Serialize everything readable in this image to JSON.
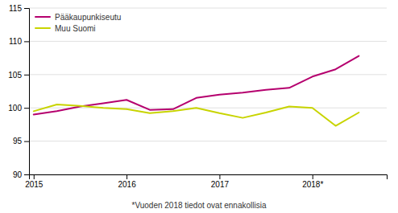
{
  "chart_data": {
    "type": "line",
    "annotations": [
      "*Vuoden 2018 tiedot ovat ennakollisia"
    ],
    "x": [
      2015.0,
      2015.25,
      2015.5,
      2015.75,
      2016.0,
      2016.25,
      2016.5,
      2016.75,
      2017.0,
      2017.25,
      2017.5,
      2017.75,
      2018.0,
      2018.25,
      2018.5
    ],
    "series": [
      {
        "name": "Pääkaupunkiseutu",
        "color": "#b5006e",
        "values": [
          99.0,
          99.5,
          100.2,
          100.7,
          101.2,
          99.7,
          99.8,
          101.5,
          102.0,
          102.3,
          102.7,
          103.0,
          104.7,
          105.8,
          107.8
        ]
      },
      {
        "name": "Muu Suomi",
        "color": "#c8d400",
        "values": [
          99.5,
          100.5,
          100.3,
          100.0,
          99.8,
          99.2,
          99.5,
          100.0,
          99.2,
          98.5,
          99.3,
          100.2,
          100.0,
          97.3,
          99.3
        ]
      }
    ],
    "xlim": [
      2014.95,
      2018.8
    ],
    "xticks": [
      2015,
      2016,
      2017,
      {
        "value": 2018,
        "label": "2018*"
      }
    ],
    "ylim": [
      90,
      115
    ],
    "yticks": [
      90,
      95,
      100,
      105,
      110,
      115
    ],
    "grid": true,
    "legend": "upper-left"
  }
}
